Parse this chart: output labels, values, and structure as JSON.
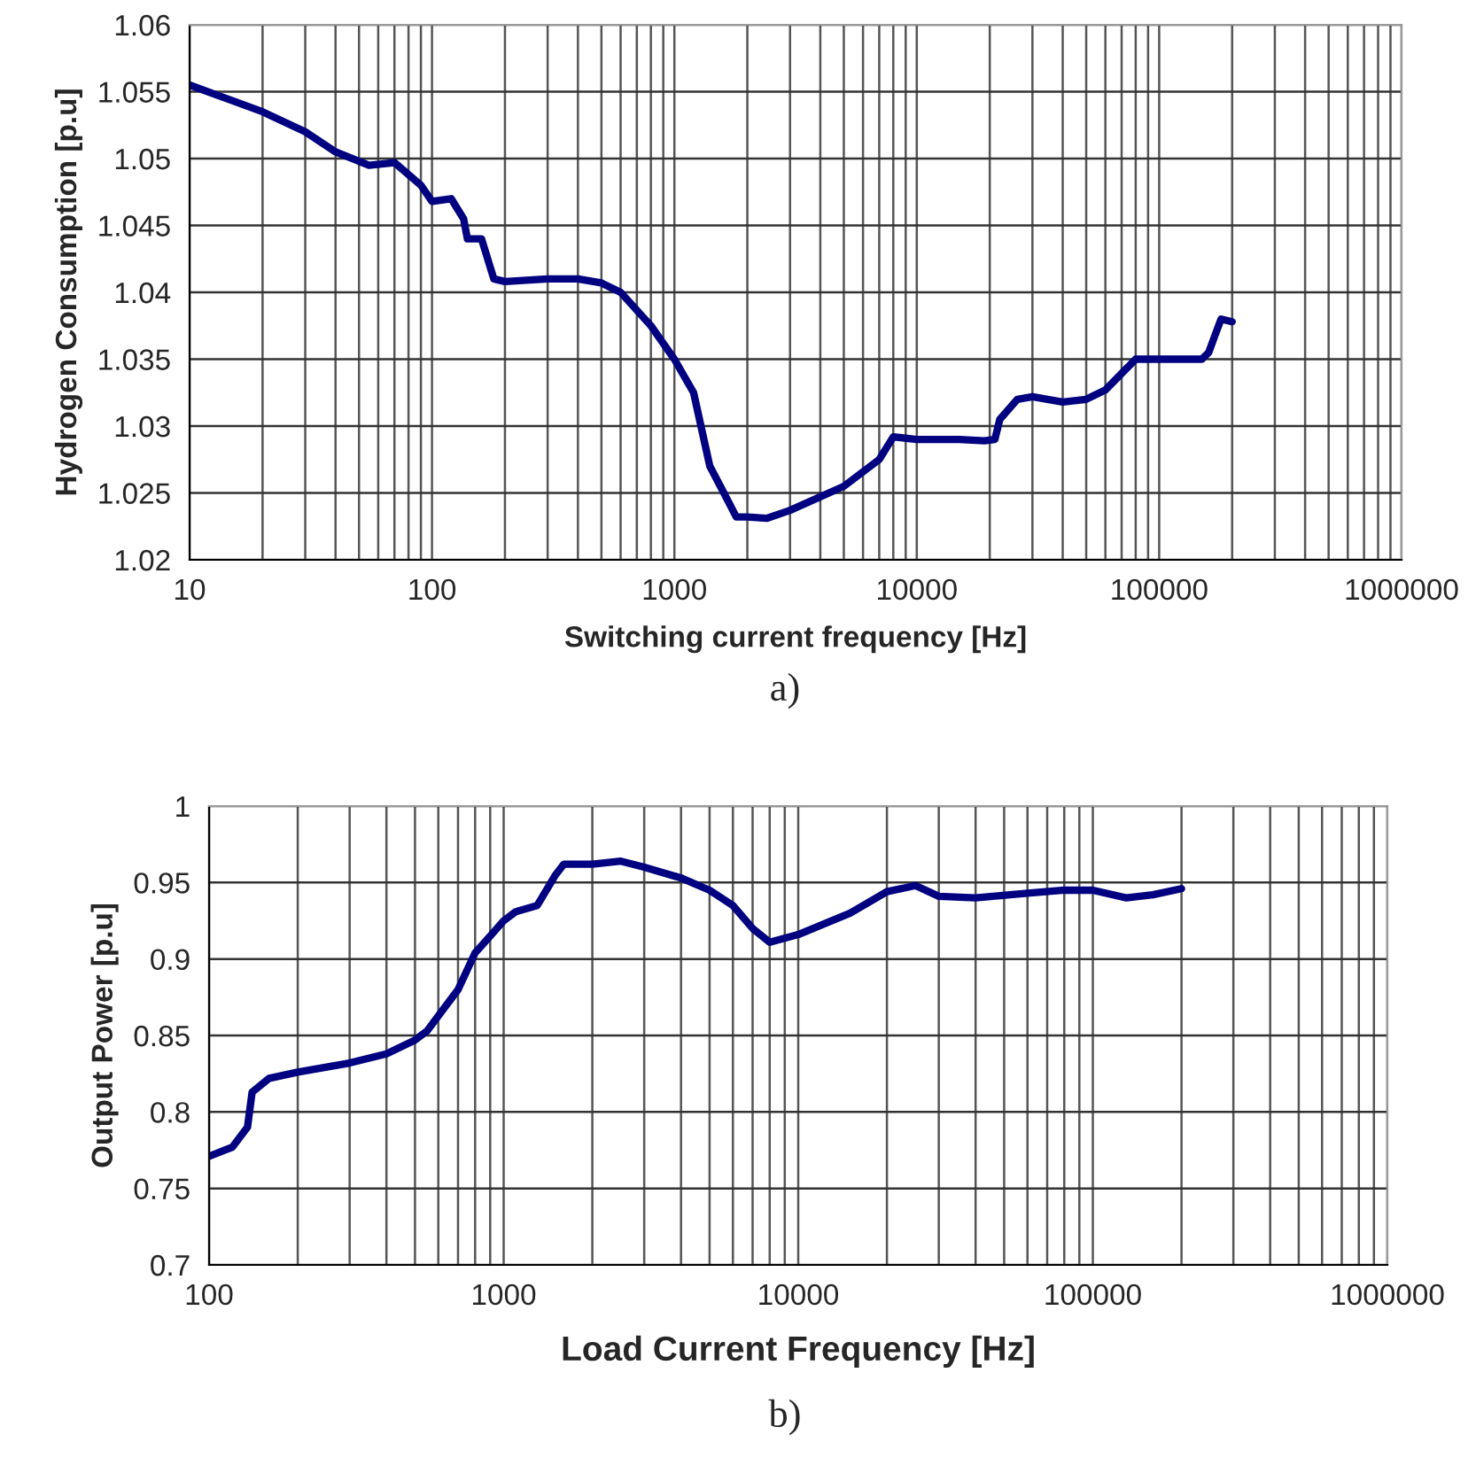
{
  "chart_data": [
    {
      "type": "line",
      "xlabel": "Switching current frequency [Hz]",
      "ylabel": "Hydrogen Consumption [p.u]",
      "annotations": [
        "a)"
      ],
      "log": "x",
      "grid": true,
      "xlim": [
        10,
        1000000
      ],
      "xticks": [
        10,
        100,
        1000,
        10000,
        100000,
        1000000
      ],
      "ylim": [
        1.02,
        1.06
      ],
      "yticks": [
        1.02,
        1.025,
        1.03,
        1.035,
        1.04,
        1.045,
        1.05,
        1.055,
        1.06
      ],
      "line_style": "solid",
      "marker": "none",
      "x": [
        10,
        20,
        30,
        40,
        55,
        70,
        90,
        100,
        120,
        135,
        140,
        160,
        180,
        200,
        300,
        400,
        500,
        600,
        800,
        1000,
        1200,
        1400,
        1600,
        1800,
        2000,
        2400,
        3000,
        5000,
        7000,
        8000,
        10000,
        15000,
        19000,
        21000,
        22000,
        26000,
        30000,
        40000,
        50000,
        60000,
        80000,
        100000,
        150000,
        160000,
        170000,
        180000,
        200000
      ],
      "series": [
        {
          "color": "#000080",
          "values": [
            1.0555,
            1.0535,
            1.052,
            1.0505,
            1.0495,
            1.0497,
            1.048,
            1.0468,
            1.047,
            1.0455,
            1.044,
            1.044,
            1.041,
            1.0408,
            1.041,
            1.041,
            1.0407,
            1.04,
            1.0375,
            1.035,
            1.0325,
            1.027,
            1.025,
            1.0232,
            1.0232,
            1.0231,
            1.0237,
            1.0255,
            1.0275,
            1.0292,
            1.029,
            1.029,
            1.0289,
            1.029,
            1.0305,
            1.032,
            1.0322,
            1.0318,
            1.032,
            1.0327,
            1.035,
            1.035,
            1.035,
            1.0355,
            1.0368,
            1.038,
            1.0378
          ]
        }
      ]
    },
    {
      "type": "line",
      "xlabel": "Load Current Frequency [Hz]",
      "ylabel": "Output Power [p.u]",
      "annotations": [
        "b)"
      ],
      "log": "x",
      "grid": true,
      "xlim": [
        100,
        1000000
      ],
      "xticks": [
        100,
        1000,
        10000,
        100000,
        1000000
      ],
      "ylim": [
        0.7,
        1
      ],
      "yticks": [
        0.7,
        0.75,
        0.8,
        0.85,
        0.9,
        0.95,
        1
      ],
      "line_style": "solid",
      "marker": "none",
      "x": [
        100,
        120,
        135,
        140,
        160,
        200,
        300,
        400,
        500,
        550,
        700,
        800,
        900,
        1000,
        1100,
        1300,
        1500,
        1600,
        2000,
        2500,
        3000,
        4000,
        5000,
        6000,
        7000,
        8000,
        10000,
        15000,
        20000,
        25000,
        30000,
        40000,
        60000,
        80000,
        100000,
        130000,
        160000,
        200000
      ],
      "series": [
        {
          "color": "#000080",
          "values": [
            0.771,
            0.777,
            0.79,
            0.813,
            0.822,
            0.826,
            0.832,
            0.838,
            0.847,
            0.853,
            0.88,
            0.904,
            0.915,
            0.925,
            0.931,
            0.935,
            0.955,
            0.962,
            0.962,
            0.964,
            0.96,
            0.953,
            0.945,
            0.935,
            0.92,
            0.911,
            0.916,
            0.93,
            0.944,
            0.948,
            0.941,
            0.94,
            0.943,
            0.945,
            0.945,
            0.94,
            0.942,
            0.946
          ]
        }
      ]
    }
  ]
}
